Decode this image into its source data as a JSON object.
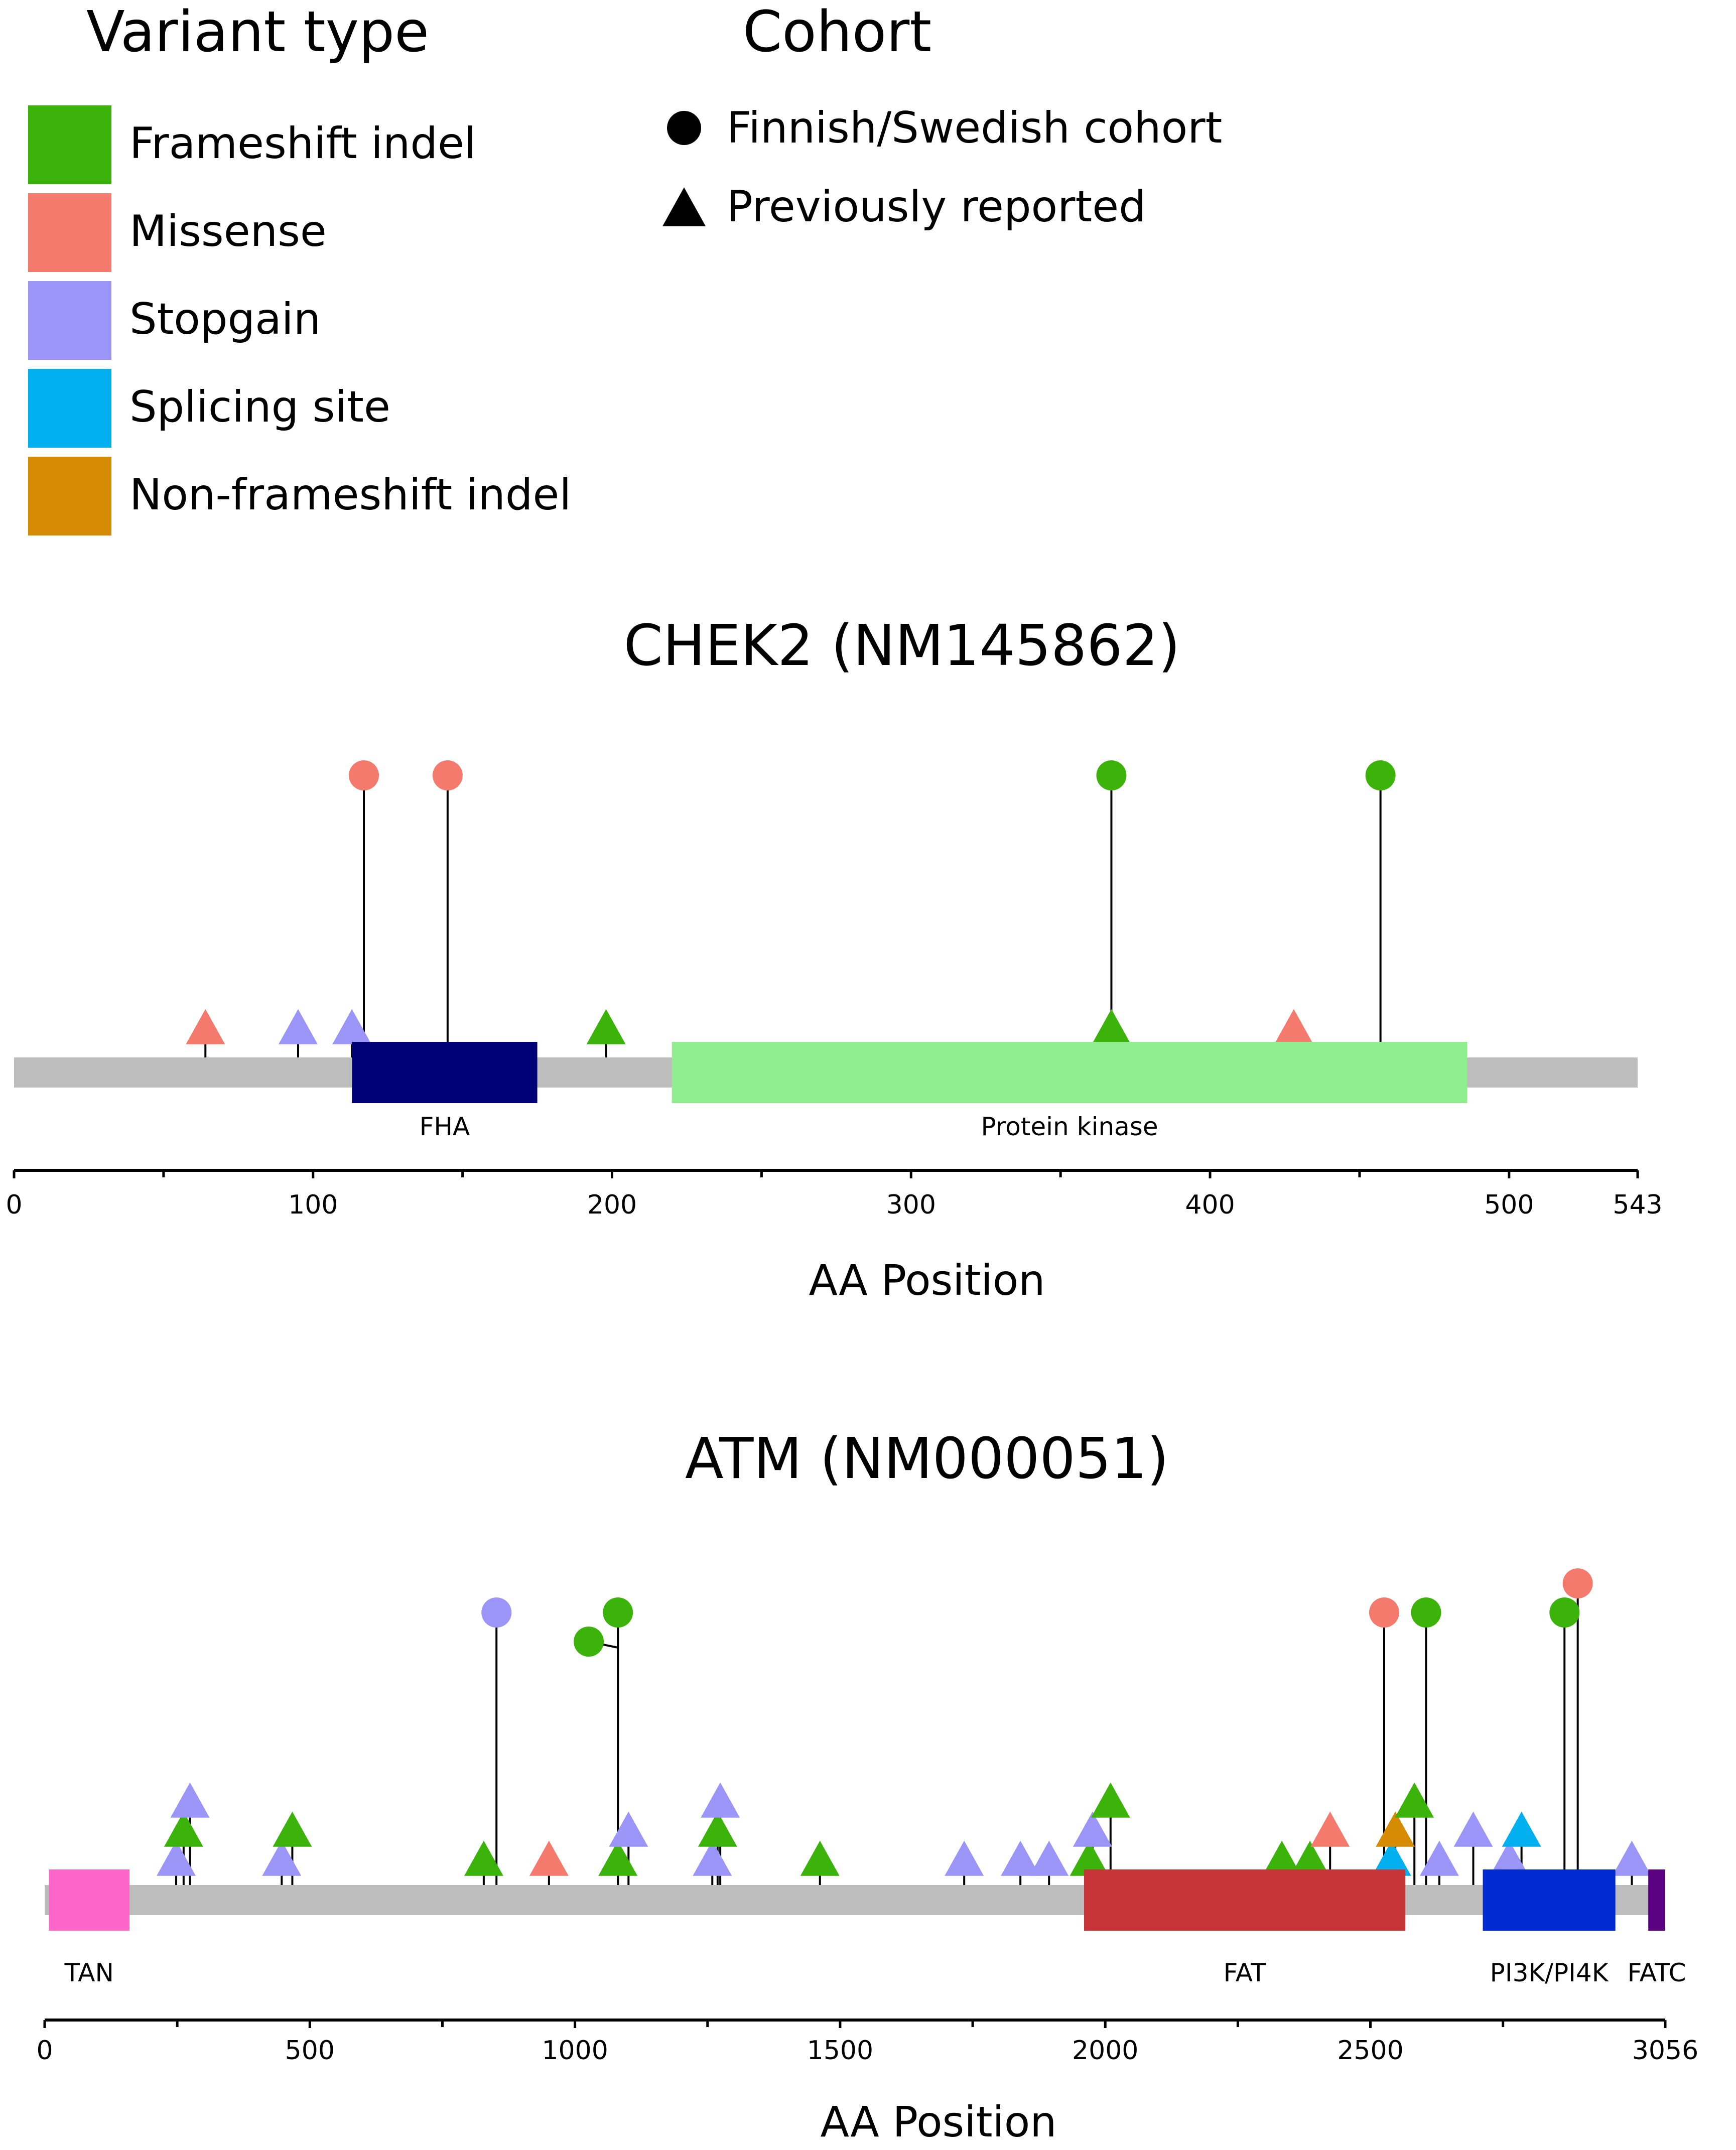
{
  "legend": {
    "variant_title": "Variant type",
    "cohort_title": "Cohort",
    "variant_types": [
      {
        "label": "Frameshift indel",
        "color": "#3cb30a"
      },
      {
        "label": "Missense",
        "color": "#f47a6e"
      },
      {
        "label": "Stopgain",
        "color": "#9b95f8"
      },
      {
        "label": "Splicing site",
        "color": "#03b0ef"
      },
      {
        "label": "Non-frameshift indel",
        "color": "#d68b04"
      }
    ],
    "cohorts": [
      {
        "label": "Finnish/Swedish cohort",
        "shape": "circle"
      },
      {
        "label": "Previously reported",
        "shape": "triangle"
      }
    ]
  },
  "chart_data": [
    {
      "type": "lollipop",
      "title": "CHEK2 (NM145862)",
      "xlabel": "AA Position",
      "length": 543,
      "xlim": [
        0,
        543
      ],
      "ticks": [
        0,
        100,
        200,
        300,
        400,
        500,
        543
      ],
      "minor_ticks": [
        50,
        150,
        250,
        350,
        450
      ],
      "backbone_color": "#bdbdbd",
      "domains": [
        {
          "name": "FHA",
          "start": 113,
          "end": 175,
          "color": "#010177"
        },
        {
          "name": "Protein kinase",
          "start": 220,
          "end": 486,
          "color": "#90ee90"
        }
      ],
      "variants": [
        {
          "pos": 64,
          "type": "Missense",
          "cohort": "Previously reported",
          "level": 1
        },
        {
          "pos": 95,
          "type": "Stopgain",
          "cohort": "Previously reported",
          "level": 1
        },
        {
          "pos": 113,
          "type": "Stopgain",
          "cohort": "Previously reported",
          "level": 1
        },
        {
          "pos": 117,
          "type": "Missense",
          "cohort": "Finnish/Swedish cohort",
          "level": 4
        },
        {
          "pos": 145,
          "type": "Missense",
          "cohort": "Finnish/Swedish cohort",
          "level": 4
        },
        {
          "pos": 198,
          "type": "Frameshift indel",
          "cohort": "Previously reported",
          "level": 1
        },
        {
          "pos": 367,
          "type": "Frameshift indel",
          "cohort": "Previously reported",
          "level": 1
        },
        {
          "pos": 367,
          "type": "Frameshift indel",
          "cohort": "Finnish/Swedish cohort",
          "level": 4
        },
        {
          "pos": 428,
          "type": "Missense",
          "cohort": "Previously reported",
          "level": 1
        },
        {
          "pos": 457,
          "type": "Frameshift indel",
          "cohort": "Finnish/Swedish cohort",
          "level": 4
        }
      ]
    },
    {
      "type": "lollipop",
      "title": "ATM (NM000051)",
      "xlabel": "AA Position",
      "length": 3056,
      "xlim": [
        0,
        3056
      ],
      "ticks": [
        0,
        500,
        1000,
        1500,
        2000,
        2500,
        3056
      ],
      "minor_ticks": [
        250,
        750,
        1250,
        1750,
        2250,
        2750
      ],
      "backbone_color": "#bdbdbd",
      "domains": [
        {
          "name": "TAN",
          "start": 8,
          "end": 160,
          "color": "#fe65c9"
        },
        {
          "name": "FAT",
          "start": 1960,
          "end": 2566,
          "color": "#c73538"
        },
        {
          "name": "PI3K/PI4K",
          "start": 2712,
          "end": 2962,
          "color": "#0129d2"
        },
        {
          "name": "FATC",
          "start": 3024,
          "end": 3056,
          "color": "#5a0280"
        }
      ],
      "variants": [
        {
          "pos": 248,
          "type": "Stopgain",
          "cohort": "Previously reported",
          "level": 1
        },
        {
          "pos": 262,
          "type": "Frameshift indel",
          "cohort": "Previously reported",
          "level": 2
        },
        {
          "pos": 274,
          "type": "Stopgain",
          "cohort": "Previously reported",
          "level": 3
        },
        {
          "pos": 447,
          "type": "Stopgain",
          "cohort": "Previously reported",
          "level": 1
        },
        {
          "pos": 467,
          "type": "Frameshift indel",
          "cohort": "Previously reported",
          "level": 2
        },
        {
          "pos": 828,
          "type": "Frameshift indel",
          "cohort": "Previously reported",
          "level": 1
        },
        {
          "pos": 852,
          "type": "Stopgain",
          "cohort": "Finnish/Swedish cohort",
          "level": 5
        },
        {
          "pos": 951,
          "type": "Missense",
          "cohort": "Previously reported",
          "level": 1
        },
        {
          "pos": 1081,
          "type": "Frameshift indel",
          "cohort": "Previously reported",
          "level": 1
        },
        {
          "pos": 1081,
          "type": "Frameshift indel",
          "cohort": "Finnish/Swedish cohort",
          "level": 5
        },
        {
          "pos": 1081,
          "type": "Frameshift indel",
          "cohort": "Finnish/Swedish cohort",
          "level": 5,
          "label_pos": 1026,
          "label_dy": -58
        },
        {
          "pos": 1101,
          "type": "Stopgain",
          "cohort": "Previously reported",
          "level": 2
        },
        {
          "pos": 1259,
          "type": "Stopgain",
          "cohort": "Previously reported",
          "level": 1
        },
        {
          "pos": 1269,
          "type": "Frameshift indel",
          "cohort": "Previously reported",
          "level": 2
        },
        {
          "pos": 1274,
          "type": "Stopgain",
          "cohort": "Previously reported",
          "level": 3
        },
        {
          "pos": 1462,
          "type": "Frameshift indel",
          "cohort": "Previously reported",
          "level": 1
        },
        {
          "pos": 1734,
          "type": "Stopgain",
          "cohort": "Previously reported",
          "level": 1
        },
        {
          "pos": 1840,
          "type": "Stopgain",
          "cohort": "Previously reported",
          "level": 1
        },
        {
          "pos": 1894,
          "type": "Stopgain",
          "cohort": "Previously reported",
          "level": 1
        },
        {
          "pos": 1970,
          "type": "Frameshift indel",
          "cohort": "Previously reported",
          "level": 1
        },
        {
          "pos": 1976,
          "type": "Stopgain",
          "cohort": "Previously reported",
          "level": 2
        },
        {
          "pos": 2010,
          "type": "Frameshift indel",
          "cohort": "Previously reported",
          "level": 3
        },
        {
          "pos": 2333,
          "type": "Frameshift indel",
          "cohort": "Previously reported",
          "level": 1
        },
        {
          "pos": 2386,
          "type": "Frameshift indel",
          "cohort": "Previously reported",
          "level": 1
        },
        {
          "pos": 2424,
          "type": "Missense",
          "cohort": "Previously reported",
          "level": 2
        },
        {
          "pos": 2526,
          "type": "Missense",
          "cohort": "Finnish/Swedish cohort",
          "level": 5
        },
        {
          "pos": 2540,
          "type": "Splicing site",
          "cohort": "Previously reported",
          "level": 1
        },
        {
          "pos": 2547,
          "type": "Non-frameshift indel",
          "cohort": "Previously reported",
          "level": 2
        },
        {
          "pos": 2583,
          "type": "Frameshift indel",
          "cohort": "Previously reported",
          "level": 3
        },
        {
          "pos": 2605,
          "type": "Frameshift indel",
          "cohort": "Finnish/Swedish cohort",
          "level": 5
        },
        {
          "pos": 2630,
          "type": "Stopgain",
          "cohort": "Previously reported",
          "level": 1
        },
        {
          "pos": 2694,
          "type": "Stopgain",
          "cohort": "Previously reported",
          "level": 2
        },
        {
          "pos": 2762,
          "type": "Stopgain",
          "cohort": "Previously reported",
          "level": 1
        },
        {
          "pos": 2785,
          "type": "Splicing site",
          "cohort": "Previously reported",
          "level": 2
        },
        {
          "pos": 2866,
          "type": "Frameshift indel",
          "cohort": "Finnish/Swedish cohort",
          "level": 5
        },
        {
          "pos": 2891,
          "type": "Missense",
          "cohort": "Finnish/Swedish cohort",
          "level": 6
        },
        {
          "pos": 2993,
          "type": "Stopgain",
          "cohort": "Previously reported",
          "level": 1
        }
      ]
    }
  ]
}
